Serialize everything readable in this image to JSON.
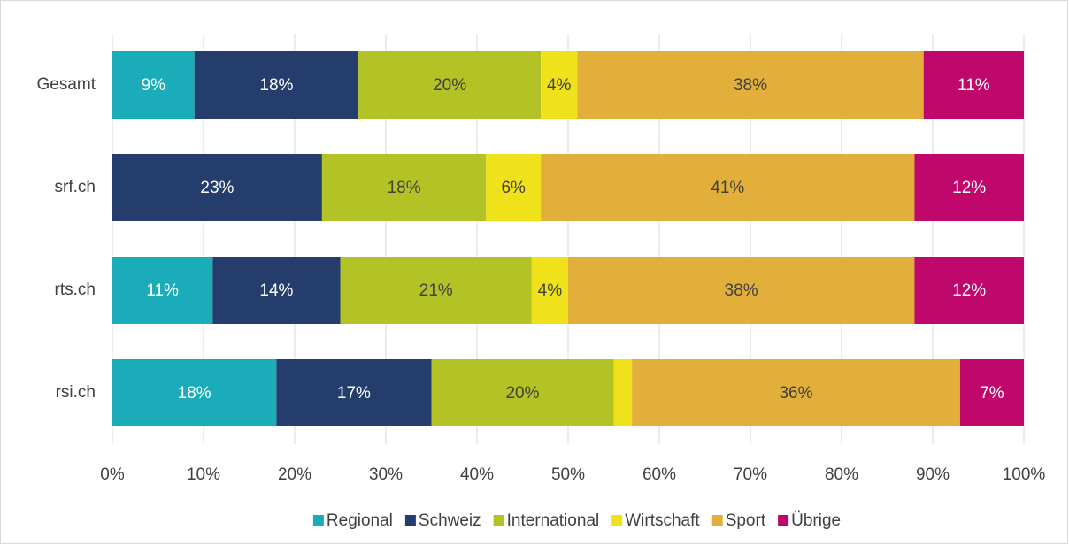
{
  "chart_data": {
    "type": "stacked-bar-horizontal",
    "categories": [
      "Gesamt",
      "srf.ch",
      "rts.ch",
      "rsi.ch"
    ],
    "series": [
      {
        "name": "Regional",
        "color": "#1aacb8",
        "values": [
          9,
          0,
          11,
          18
        ],
        "value_labels": [
          "9%",
          null,
          "11%",
          "18%"
        ]
      },
      {
        "name": "Schweiz",
        "color": "#253d6c",
        "values": [
          18,
          23,
          14,
          17
        ],
        "value_labels": [
          "18%",
          "23%",
          "14%",
          "17%"
        ]
      },
      {
        "name": "International",
        "color": "#b3c224",
        "values": [
          20,
          18,
          21,
          20
        ],
        "value_labels": [
          "20%",
          "18%",
          "21%",
          "20%"
        ]
      },
      {
        "name": "Wirtschaft",
        "color": "#f0e21a",
        "values": [
          4,
          6,
          4,
          2
        ],
        "value_labels": [
          "4%",
          "6%",
          "4%",
          null
        ]
      },
      {
        "name": "Sport",
        "color": "#e2b03a",
        "values": [
          38,
          41,
          38,
          36
        ],
        "value_labels": [
          "38%",
          "41%",
          "38%",
          "36%"
        ]
      },
      {
        "name": "Übrige",
        "color": "#c0076b",
        "values": [
          11,
          12,
          12,
          7
        ],
        "value_labels": [
          "11%",
          "12%",
          "12%",
          "7%"
        ]
      }
    ],
    "xlim": [
      0,
      100
    ],
    "xticks": [
      {
        "value": 0,
        "label": "0%"
      },
      {
        "value": 10,
        "label": "10%"
      },
      {
        "value": 20,
        "label": "20%"
      },
      {
        "value": 30,
        "label": "30%"
      },
      {
        "value": 40,
        "label": "40%"
      },
      {
        "value": 50,
        "label": "50%"
      },
      {
        "value": 60,
        "label": "60%"
      },
      {
        "value": 70,
        "label": "70%"
      },
      {
        "value": 80,
        "label": "80%"
      },
      {
        "value": 90,
        "label": "90%"
      },
      {
        "value": 100,
        "label": "100%"
      }
    ],
    "grid": true,
    "legend": "bottom"
  }
}
